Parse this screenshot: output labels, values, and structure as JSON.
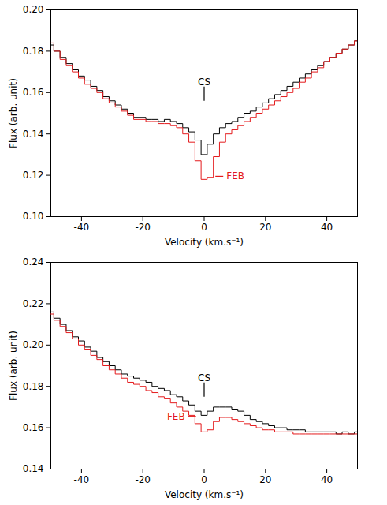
{
  "chart_data": [
    {
      "type": "line",
      "x_label": "Velocity (km.s⁻¹)",
      "y_label": "Flux (arb. unit)",
      "xlim": [
        -50,
        50
      ],
      "xticks": [
        -40,
        -20,
        0,
        20,
        40
      ],
      "ylim": [
        0.1,
        0.2
      ],
      "yticks": [
        {
          "value": 0.1,
          "label": "0.10"
        },
        {
          "value": 0.12,
          "label": "0.12"
        },
        {
          "value": 0.14,
          "label": "0.14"
        },
        {
          "value": 0.16,
          "label": "0.16"
        },
        {
          "value": 0.18,
          "label": "0.18"
        },
        {
          "value": 0.2,
          "label": "0.20"
        }
      ],
      "x": [
        -50,
        -48,
        -46,
        -44,
        -42,
        -40,
        -38,
        -36,
        -34,
        -32,
        -30,
        -28,
        -26,
        -24,
        -22,
        -20,
        -18,
        -16,
        -14,
        -12,
        -10,
        -8,
        -6,
        -4,
        -2,
        0,
        2,
        4,
        6,
        8,
        10,
        12,
        14,
        16,
        18,
        20,
        22,
        24,
        26,
        28,
        30,
        32,
        34,
        36,
        38,
        40,
        42,
        44,
        46,
        48,
        50
      ],
      "series": [
        {
          "color": "#000000",
          "line_style": "step",
          "values": [
            0.183,
            0.18,
            0.177,
            0.174,
            0.171,
            0.168,
            0.166,
            0.163,
            0.161,
            0.158,
            0.156,
            0.154,
            0.152,
            0.15,
            0.148,
            0.148,
            0.147,
            0.147,
            0.146,
            0.147,
            0.146,
            0.145,
            0.143,
            0.141,
            0.137,
            0.13,
            0.135,
            0.14,
            0.143,
            0.145,
            0.146,
            0.148,
            0.15,
            0.151,
            0.153,
            0.155,
            0.157,
            0.159,
            0.161,
            0.163,
            0.165,
            0.167,
            0.169,
            0.171,
            0.173,
            0.175,
            0.177,
            0.179,
            0.181,
            0.183,
            0.185
          ]
        },
        {
          "color": "#e41a1c",
          "line_style": "step",
          "values": [
            0.184,
            0.18,
            0.176,
            0.173,
            0.17,
            0.167,
            0.164,
            0.162,
            0.16,
            0.157,
            0.155,
            0.153,
            0.151,
            0.149,
            0.147,
            0.147,
            0.146,
            0.146,
            0.145,
            0.145,
            0.144,
            0.143,
            0.14,
            0.136,
            0.127,
            0.118,
            0.119,
            0.129,
            0.136,
            0.14,
            0.142,
            0.144,
            0.146,
            0.148,
            0.15,
            0.152,
            0.154,
            0.156,
            0.158,
            0.16,
            0.162,
            0.165,
            0.167,
            0.17,
            0.172,
            0.175,
            0.177,
            0.179,
            0.181,
            0.183,
            0.185
          ]
        }
      ],
      "annotations": [
        {
          "text": "CS",
          "x": 0,
          "y": 0.164,
          "color": "#000000",
          "marker": "vline"
        },
        {
          "text": "FEB",
          "x": 7,
          "y": 0.1195,
          "color": "#e41a1c",
          "marker": "dash-left"
        }
      ]
    },
    {
      "type": "line",
      "x_label": "Velocity (km.s⁻¹)",
      "y_label": "Flux (arb. unit)",
      "xlim": [
        -50,
        50
      ],
      "xticks": [
        -40,
        -20,
        0,
        20,
        40
      ],
      "ylim": [
        0.14,
        0.24
      ],
      "yticks": [
        {
          "value": 0.14,
          "label": "0.14"
        },
        {
          "value": 0.16,
          "label": "0.16"
        },
        {
          "value": 0.18,
          "label": "0.18"
        },
        {
          "value": 0.2,
          "label": "0.20"
        },
        {
          "value": 0.22,
          "label": "0.22"
        },
        {
          "value": 0.24,
          "label": "0.24"
        }
      ],
      "x": [
        -50,
        -48,
        -46,
        -44,
        -42,
        -40,
        -38,
        -36,
        -34,
        -32,
        -30,
        -28,
        -26,
        -24,
        -22,
        -20,
        -18,
        -16,
        -14,
        -12,
        -10,
        -8,
        -6,
        -4,
        -2,
        0,
        2,
        4,
        6,
        8,
        10,
        12,
        14,
        16,
        18,
        20,
        22,
        24,
        26,
        28,
        30,
        32,
        34,
        36,
        38,
        40,
        42,
        44,
        46,
        48,
        50
      ],
      "series": [
        {
          "color": "#000000",
          "line_style": "step",
          "values": [
            0.216,
            0.213,
            0.21,
            0.207,
            0.204,
            0.202,
            0.199,
            0.197,
            0.194,
            0.192,
            0.19,
            0.188,
            0.186,
            0.185,
            0.184,
            0.183,
            0.182,
            0.18,
            0.179,
            0.178,
            0.176,
            0.175,
            0.173,
            0.171,
            0.168,
            0.166,
            0.168,
            0.17,
            0.17,
            0.17,
            0.169,
            0.168,
            0.166,
            0.164,
            0.163,
            0.162,
            0.161,
            0.16,
            0.16,
            0.159,
            0.159,
            0.159,
            0.158,
            0.158,
            0.158,
            0.158,
            0.158,
            0.157,
            0.158,
            0.157,
            0.158
          ]
        },
        {
          "color": "#e41a1c",
          "line_style": "step",
          "values": [
            0.215,
            0.212,
            0.209,
            0.206,
            0.203,
            0.2,
            0.198,
            0.195,
            0.193,
            0.19,
            0.188,
            0.186,
            0.184,
            0.182,
            0.181,
            0.18,
            0.178,
            0.177,
            0.175,
            0.174,
            0.172,
            0.17,
            0.168,
            0.166,
            0.162,
            0.158,
            0.159,
            0.163,
            0.165,
            0.165,
            0.164,
            0.163,
            0.162,
            0.161,
            0.16,
            0.159,
            0.159,
            0.158,
            0.158,
            0.158,
            0.157,
            0.157,
            0.157,
            0.157,
            0.157,
            0.157,
            0.157,
            0.157,
            0.157,
            0.157,
            0.157
          ]
        }
      ],
      "annotations": [
        {
          "text": "CS",
          "x": 0,
          "y": 0.183,
          "color": "#000000",
          "marker": "vline"
        },
        {
          "text": "FEB",
          "x": -6,
          "y": 0.1655,
          "color": "#e41a1c",
          "marker": "dash-right"
        }
      ]
    }
  ]
}
